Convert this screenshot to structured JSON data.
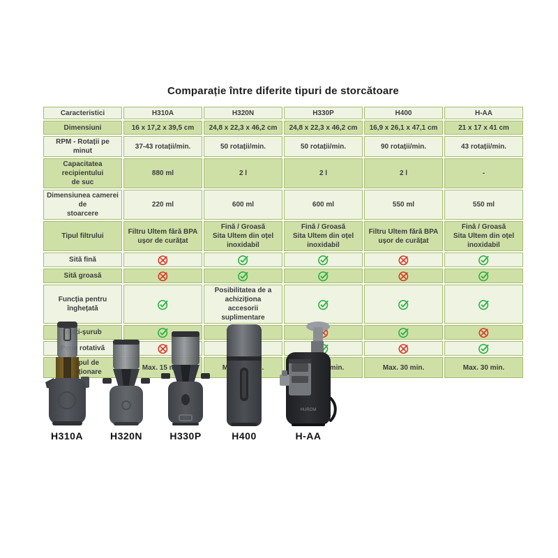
{
  "page": {
    "title": "Comparație între diferite tipuri de storcătoare"
  },
  "colors": {
    "row_green": "#cfe0a7",
    "row_pale": "#eef3e2",
    "table_border": "#a4bb6c",
    "check_green": "#2bb245",
    "cross_red": "#da3526"
  },
  "table": {
    "header": [
      "Caracteristici",
      "H310A",
      "H320N",
      "H330P",
      "H400",
      "H-AA"
    ],
    "rows": [
      {
        "label": "Dimensiuni",
        "cells": [
          {
            "text": "16 x 17,2 x 39,5 cm"
          },
          {
            "text": "24,8 x 22,3 x 46,2 cm"
          },
          {
            "text": "24,8 x 22,3 x 46,2 cm"
          },
          {
            "text": "16,9 x 26,1 x 47,1 cm"
          },
          {
            "text": "21 x 17 x 41 cm"
          }
        ]
      },
      {
        "label": "RPM - Rotații pe minut",
        "cells": [
          {
            "text": "37-43 rotații/min."
          },
          {
            "text": "50 rotații/min."
          },
          {
            "text": "50 rotații/min."
          },
          {
            "text": "90 rotații/min."
          },
          {
            "text": "43 rotații/min."
          }
        ]
      },
      {
        "label": "Capacitatea recipientului\nde suc",
        "cells": [
          {
            "text": "880 ml"
          },
          {
            "text": "2 l"
          },
          {
            "text": "2 l"
          },
          {
            "text": "2 l"
          },
          {
            "text": "-"
          }
        ]
      },
      {
        "label": "Dimensiunea camerei de\nstoarcere",
        "cells": [
          {
            "text": "220 ml"
          },
          {
            "text": "600 ml"
          },
          {
            "text": "600 ml"
          },
          {
            "text": "550 ml"
          },
          {
            "text": "550 ml"
          }
        ]
      },
      {
        "label": "Tipul filtrului",
        "cells": [
          {
            "text": "Filtru Ultem fără BPA\nușor de curățat"
          },
          {
            "text": "Fină / Groasă\nSita Ultem din oțel\ninoxidabil"
          },
          {
            "text": "Fină / Groasă\nSita Ultem din oțel\ninoxidabil"
          },
          {
            "text": "Filtru Ultem fără BPA\nușor de curățat"
          },
          {
            "text": "Fină / Groasă\nSita Ultem din oțel\ninoxidabil"
          }
        ]
      },
      {
        "label": "Sită fină",
        "cells": [
          {
            "icon": "cross-icon"
          },
          {
            "icon": "check-icon"
          },
          {
            "icon": "check-icon"
          },
          {
            "icon": "cross-icon"
          },
          {
            "icon": "check-icon"
          }
        ]
      },
      {
        "label": "Sită groasă",
        "cells": [
          {
            "icon": "cross-icon"
          },
          {
            "icon": "check-icon"
          },
          {
            "icon": "check-icon"
          },
          {
            "icon": "cross-icon"
          },
          {
            "icon": "check-icon"
          }
        ]
      },
      {
        "label": "Funcția pentru\nînghețată",
        "cells": [
          {
            "icon": "check-icon"
          },
          {
            "text": "Posibilitatea de a achiziționa\naccesorii suplimentare"
          },
          {
            "icon": "check-icon"
          },
          {
            "icon": "check-icon"
          },
          {
            "icon": "check-icon"
          }
        ]
      },
      {
        "label": "Multi-șurub",
        "cells": [
          {
            "icon": "check-icon"
          },
          {
            "icon": "cross-icon"
          },
          {
            "icon": "cross-icon"
          },
          {
            "icon": "check-icon"
          },
          {
            "icon": "cross-icon"
          }
        ]
      },
      {
        "label": "Perie rotativă",
        "cells": [
          {
            "icon": "cross-icon"
          },
          {
            "icon": "check-icon"
          },
          {
            "icon": "check-icon"
          },
          {
            "icon": "cross-icon"
          },
          {
            "icon": "check-icon"
          }
        ]
      },
      {
        "label": "Timpul de funcționare",
        "cells": [
          {
            "text": "Max. 15 min."
          },
          {
            "text": "Max. 30 min."
          },
          {
            "text": "Max. 30 min."
          },
          {
            "text": "Max. 30 min."
          },
          {
            "text": "Max. 30 min."
          }
        ]
      }
    ]
  },
  "products": [
    {
      "label": "H310A"
    },
    {
      "label": "H320N"
    },
    {
      "label": "H330P"
    },
    {
      "label": "H400"
    },
    {
      "label": "H-AA"
    }
  ]
}
